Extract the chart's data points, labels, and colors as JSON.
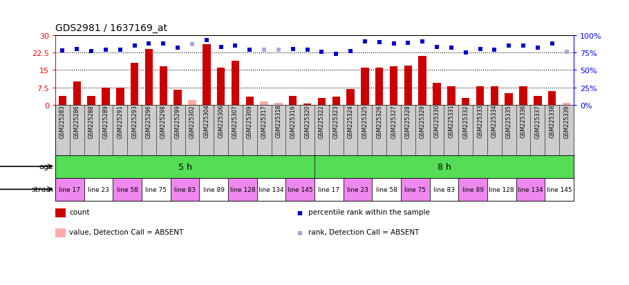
{
  "title": "GDS2981 / 1637169_at",
  "samples": [
    "GSM225283",
    "GSM225286",
    "GSM225288",
    "GSM225289",
    "GSM225291",
    "GSM225293",
    "GSM225296",
    "GSM225298",
    "GSM225299",
    "GSM225302",
    "GSM225304",
    "GSM225306",
    "GSM225307",
    "GSM225309",
    "GSM225317",
    "GSM225318",
    "GSM225319",
    "GSM225320",
    "GSM225322",
    "GSM225323",
    "GSM225324",
    "GSM225325",
    "GSM225326",
    "GSM225327",
    "GSM225328",
    "GSM225329",
    "GSM225330",
    "GSM225331",
    "GSM225332",
    "GSM225333",
    "GSM225334",
    "GSM225335",
    "GSM225336",
    "GSM225337",
    "GSM225338",
    "GSM225339"
  ],
  "counts": [
    4.0,
    10.0,
    4.0,
    7.5,
    7.5,
    18.0,
    24.0,
    16.5,
    6.5,
    2.0,
    26.0,
    16.0,
    19.0,
    3.5,
    1.5,
    0.8,
    4.0,
    0.5,
    3.0,
    3.5,
    7.0,
    16.0,
    16.0,
    16.5,
    17.0,
    21.0,
    9.5,
    8.0,
    3.0,
    8.0,
    8.0,
    5.0,
    8.0,
    4.0,
    6.0,
    0.8
  ],
  "count_absent": [
    false,
    false,
    false,
    false,
    false,
    false,
    false,
    false,
    false,
    true,
    false,
    false,
    false,
    false,
    true,
    true,
    false,
    false,
    false,
    false,
    false,
    false,
    false,
    false,
    false,
    false,
    false,
    false,
    false,
    false,
    false,
    false,
    false,
    false,
    false,
    true
  ],
  "ranks": [
    78,
    80,
    77,
    79,
    79,
    85,
    88,
    88,
    82,
    87,
    93,
    83,
    85,
    79,
    79,
    79,
    80,
    79,
    76,
    73,
    77,
    91,
    90,
    88,
    89,
    91,
    83,
    82,
    75,
    80,
    79,
    85,
    85,
    82,
    88,
    76
  ],
  "rank_absent": [
    false,
    false,
    false,
    false,
    false,
    false,
    false,
    false,
    false,
    true,
    false,
    false,
    false,
    false,
    true,
    true,
    false,
    false,
    false,
    false,
    false,
    false,
    false,
    false,
    false,
    false,
    false,
    false,
    false,
    false,
    false,
    false,
    false,
    false,
    false,
    true
  ],
  "ylim_left": [
    0,
    30
  ],
  "ylim_right": [
    0,
    100
  ],
  "yticks_left": [
    0,
    7.5,
    15,
    22.5,
    30
  ],
  "ytick_labels_left": [
    "0",
    "7.5",
    "15",
    "22.5",
    "30"
  ],
  "yticks_right_pct": [
    0,
    25,
    50,
    75,
    100
  ],
  "ytick_labels_right": [
    "0%",
    "25%",
    "50%",
    "75%",
    "100%"
  ],
  "bar_color": "#cc0000",
  "bar_absent_color": "#ffaaaa",
  "dot_color": "#0000cc",
  "dot_absent_color": "#aaaacc",
  "age_color": "#55dd55",
  "age_groups": [
    {
      "label": "5 h",
      "start": 0,
      "end": 18
    },
    {
      "label": "8 h",
      "start": 18,
      "end": 36
    }
  ],
  "strain_groups": [
    {
      "label": "line 17",
      "start": 0,
      "end": 2,
      "color": "#ee88ee"
    },
    {
      "label": "line 23",
      "start": 2,
      "end": 4,
      "color": "#ffffff"
    },
    {
      "label": "line 58",
      "start": 4,
      "end": 6,
      "color": "#ee88ee"
    },
    {
      "label": "line 75",
      "start": 6,
      "end": 8,
      "color": "#ffffff"
    },
    {
      "label": "line 83",
      "start": 8,
      "end": 10,
      "color": "#ee88ee"
    },
    {
      "label": "line 89",
      "start": 10,
      "end": 12,
      "color": "#ffffff"
    },
    {
      "label": "line 128",
      "start": 12,
      "end": 14,
      "color": "#ee88ee"
    },
    {
      "label": "line 134",
      "start": 14,
      "end": 16,
      "color": "#ffffff"
    },
    {
      "label": "line 145",
      "start": 16,
      "end": 18,
      "color": "#ee88ee"
    },
    {
      "label": "line 17",
      "start": 18,
      "end": 20,
      "color": "#ffffff"
    },
    {
      "label": "line 23",
      "start": 20,
      "end": 22,
      "color": "#ee88ee"
    },
    {
      "label": "line 58",
      "start": 22,
      "end": 24,
      "color": "#ffffff"
    },
    {
      "label": "line 75",
      "start": 24,
      "end": 26,
      "color": "#ee88ee"
    },
    {
      "label": "line 83",
      "start": 26,
      "end": 28,
      "color": "#ffffff"
    },
    {
      "label": "line 89",
      "start": 28,
      "end": 30,
      "color": "#ee88ee"
    },
    {
      "label": "line 128",
      "start": 30,
      "end": 32,
      "color": "#ffffff"
    },
    {
      "label": "line 134",
      "start": 32,
      "end": 34,
      "color": "#ee88ee"
    },
    {
      "label": "line 145",
      "start": 34,
      "end": 36,
      "color": "#ffffff"
    }
  ],
  "legend_items": [
    {
      "color": "#cc0000",
      "type": "rect",
      "label": "count"
    },
    {
      "color": "#0000cc",
      "type": "dot",
      "label": "percentile rank within the sample"
    },
    {
      "color": "#ffaaaa",
      "type": "rect",
      "label": "value, Detection Call = ABSENT"
    },
    {
      "color": "#aaaacc",
      "type": "dot",
      "label": "rank, Detection Call = ABSENT"
    }
  ],
  "xtick_bg_color": "#cccccc",
  "background_color": "#ffffff"
}
